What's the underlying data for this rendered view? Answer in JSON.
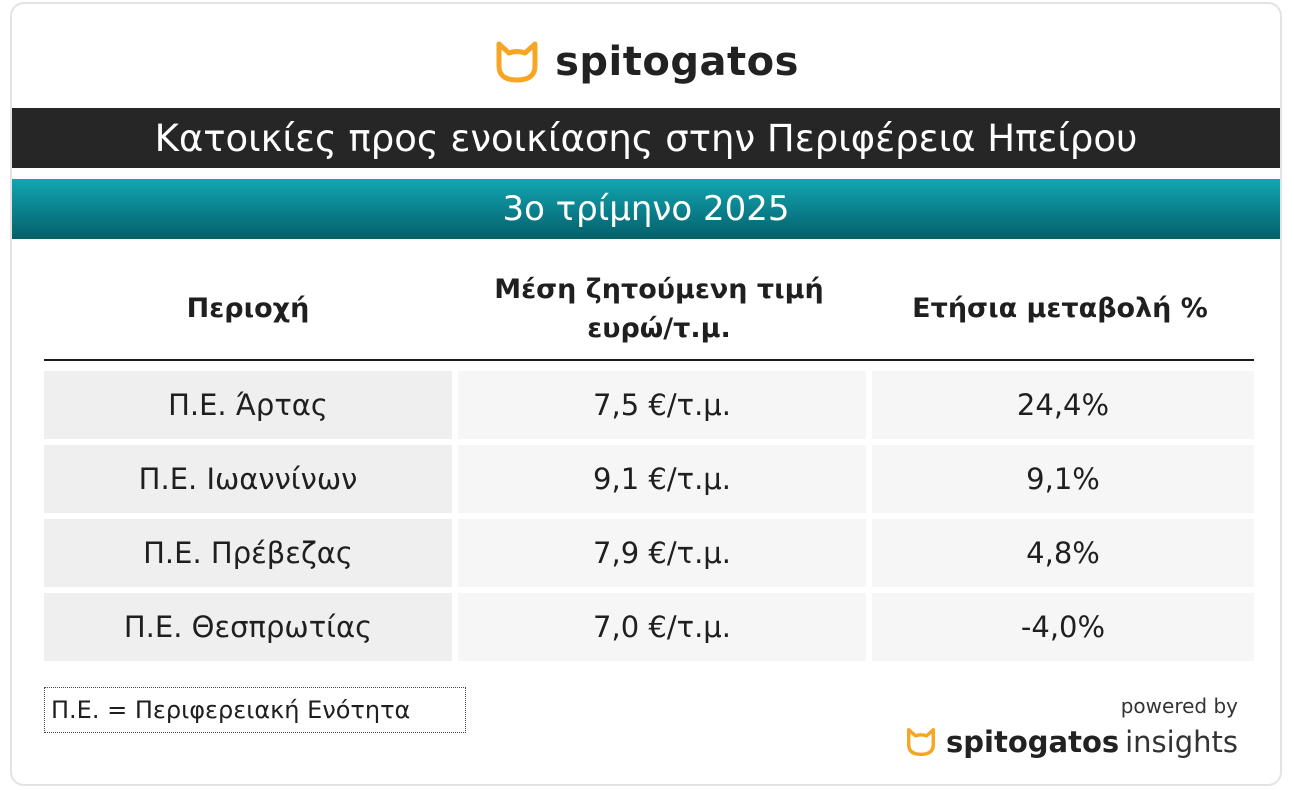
{
  "brand": {
    "name": "spitogatos",
    "icon": "cat-icon",
    "accent_color": "#f6a623"
  },
  "title": "Κατοικίες προς ενοικίασης στην Περιφέρεια Ηπείρου",
  "subtitle": "3ο τρίμηνο 2025",
  "table": {
    "headers": [
      "Περιοχή",
      "Μέση ζητούμενη τιμή\nευρώ/τ.μ.",
      "Ετήσια μεταβολή %"
    ],
    "rows": [
      {
        "region": "Π.Ε. Άρτας",
        "price": "7,5 €/τ.μ.",
        "change": "24,4%"
      },
      {
        "region": "Π.Ε. Ιωαννίνων",
        "price": "9,1 €/τ.μ.",
        "change": "9,1%"
      },
      {
        "region": "Π.Ε. Πρέβεζας",
        "price": "7,9 €/τ.μ.",
        "change": "4,8%"
      },
      {
        "region": "Π.Ε. Θεσπρωτίας",
        "price": "7,0 €/τ.μ.",
        "change": "-4,0%"
      }
    ]
  },
  "footnote": "Π.Ε. = Περιφερειακή Ενότητα",
  "footer": {
    "powered_by": "powered by",
    "brand_name": "spitogatos",
    "brand_suffix": "insights"
  },
  "colors": {
    "title_bar": "#262626",
    "subtitle_bar": "#0a7f8b"
  }
}
